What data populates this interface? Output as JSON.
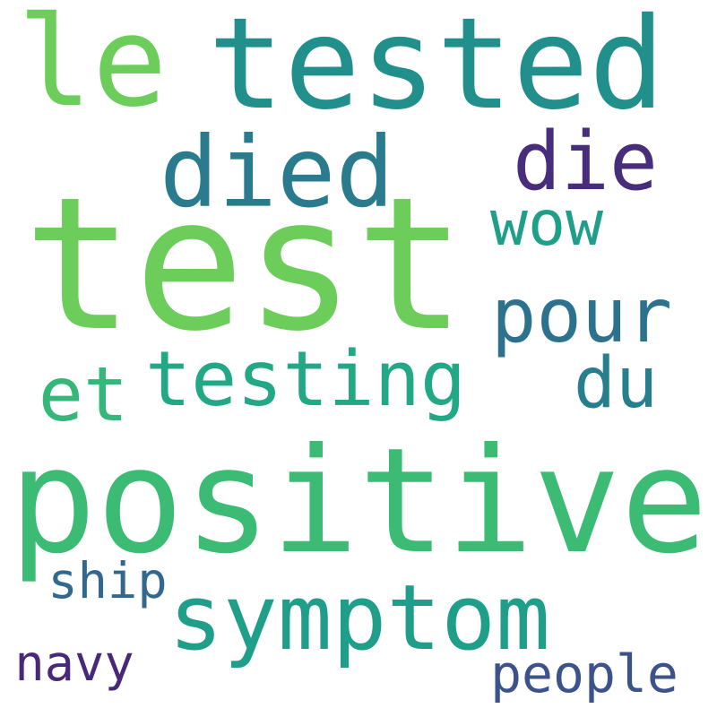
{
  "cloud": {
    "words": [
      {
        "text": "test",
        "color": "#6ccd5a"
      },
      {
        "text": "positive",
        "color": "#3cbb75"
      },
      {
        "text": "tested",
        "color": "#21908d"
      },
      {
        "text": "le",
        "color": "#6ccd5a"
      },
      {
        "text": "symptom",
        "color": "#1f9e89"
      },
      {
        "text": "died",
        "color": "#2a7b8e"
      },
      {
        "text": "testing",
        "color": "#22a884"
      },
      {
        "text": "die",
        "color": "#472d7b"
      },
      {
        "text": "pour",
        "color": "#2c728e"
      },
      {
        "text": "wow",
        "color": "#1f9e89"
      },
      {
        "text": "et",
        "color": "#35b779"
      },
      {
        "text": "du",
        "color": "#277f8e"
      },
      {
        "text": "people",
        "color": "#3b528b"
      },
      {
        "text": "ship",
        "color": "#31688e"
      },
      {
        "text": "navy",
        "color": "#482878"
      }
    ]
  }
}
